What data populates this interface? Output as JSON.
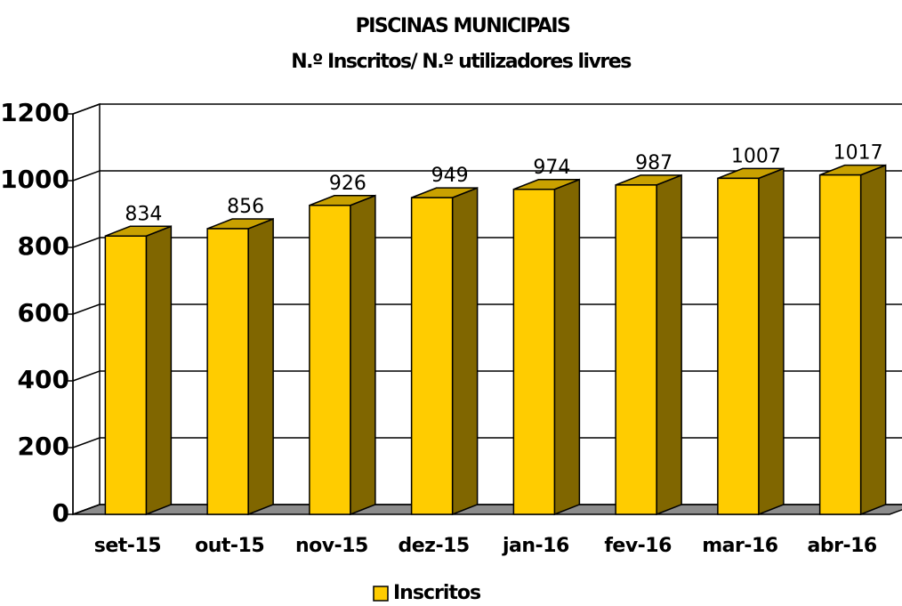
{
  "chart_data": {
    "type": "bar3d",
    "title": "PISCINAS MUNICIPAIS",
    "subtitle": "N.º Inscritos/ N.º utilizadores livres",
    "categories": [
      "set-15",
      "out-15",
      "nov-15",
      "dez-15",
      "jan-16",
      "fev-16",
      "mar-16",
      "abr-16"
    ],
    "series": [
      {
        "name": "Inscritos",
        "color": "#ffcc00",
        "values": [
          834,
          856,
          926,
          949,
          974,
          987,
          1007,
          1017
        ]
      }
    ],
    "ylim": [
      0,
      1200
    ],
    "yticks": [
      0,
      200,
      400,
      600,
      800,
      1000,
      1200
    ],
    "grid": true,
    "legend": "bottom"
  }
}
